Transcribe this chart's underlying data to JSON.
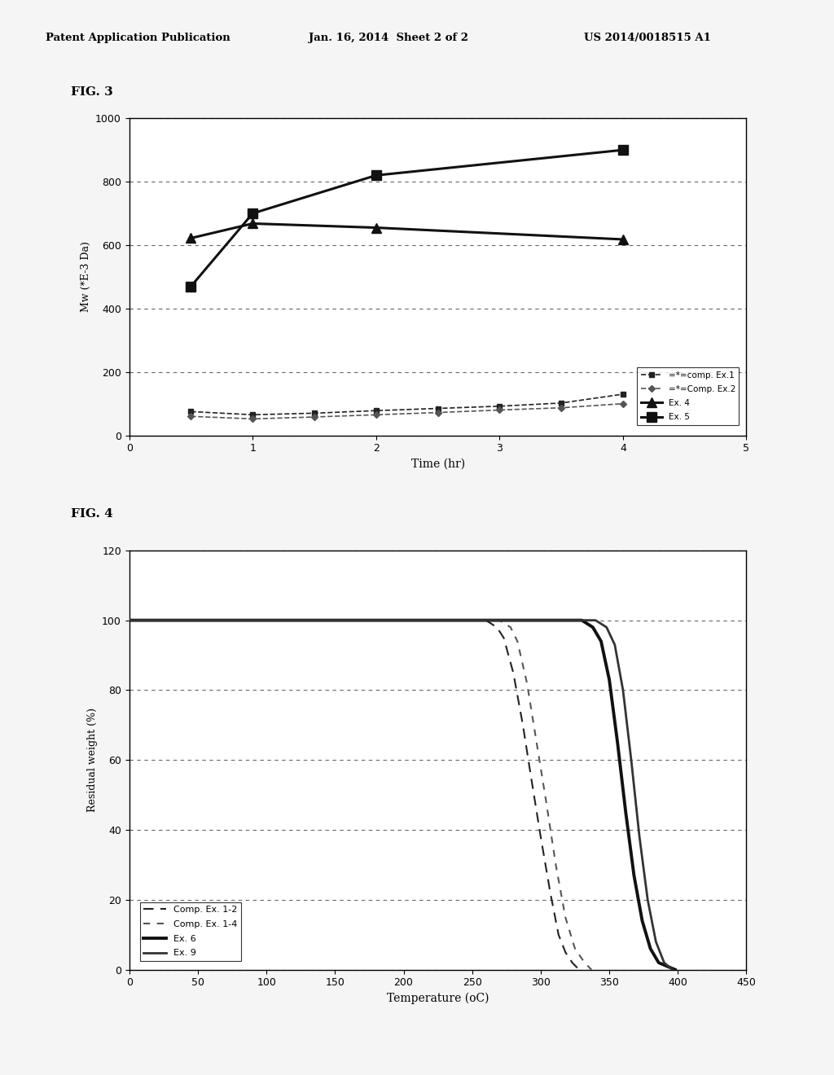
{
  "header_left": "Patent Application Publication",
  "header_mid": "Jan. 16, 2014  Sheet 2 of 2",
  "header_right": "US 2014/0018515 A1",
  "fig3_label": "FIG. 3",
  "fig3": {
    "xlabel": "Time (hr)",
    "ylabel": "Mw (*E-3 Da)",
    "xlim": [
      0,
      5
    ],
    "ylim": [
      0,
      1000
    ],
    "yticks": [
      0,
      200,
      400,
      600,
      800,
      1000
    ],
    "xticks": [
      0,
      1,
      2,
      3,
      4,
      5
    ],
    "series": [
      {
        "label": "=*=comp. Ex.1",
        "x": [
          0.5,
          1.0,
          1.5,
          2.0,
          2.5,
          3.0,
          3.5,
          4.0
        ],
        "y": [
          75,
          65,
          70,
          78,
          85,
          92,
          102,
          130
        ],
        "linestyle": "dashed",
        "marker": "s",
        "color": "#222222",
        "linewidth": 1.2,
        "markersize": 5
      },
      {
        "label": "=*=Comp. Ex.2",
        "x": [
          0.5,
          1.0,
          1.5,
          2.0,
          2.5,
          3.0,
          3.5,
          4.0
        ],
        "y": [
          60,
          52,
          58,
          65,
          72,
          80,
          87,
          100
        ],
        "linestyle": "dashed",
        "marker": "D",
        "color": "#555555",
        "linewidth": 1.2,
        "markersize": 4
      },
      {
        "label": "Ex. 4",
        "x": [
          0.5,
          1.0,
          2.0,
          4.0
        ],
        "y": [
          622,
          668,
          655,
          618
        ],
        "linestyle": "solid",
        "marker": "^",
        "color": "#111111",
        "linewidth": 2.2,
        "markersize": 8
      },
      {
        "label": "Ex. 5",
        "x": [
          0.5,
          1.0,
          2.0,
          4.0
        ],
        "y": [
          470,
          700,
          820,
          900
        ],
        "linestyle": "solid",
        "marker": "s",
        "color": "#111111",
        "linewidth": 2.2,
        "markersize": 8
      }
    ],
    "legend_labels": [
      "=*=comp. Ex.1",
      "=*=Comp. Ex.2",
      "Ex. 4",
      "Ex. 5"
    ]
  },
  "fig4_label": "FIG. 4",
  "fig4": {
    "xlabel": "Temperature (oC)",
    "ylabel": "Residual weight (%)",
    "xlim": [
      0,
      450
    ],
    "ylim": [
      0,
      120
    ],
    "yticks": [
      0,
      20,
      40,
      60,
      80,
      100,
      120
    ],
    "xticks": [
      0,
      50,
      100,
      150,
      200,
      250,
      300,
      350,
      400,
      450
    ],
    "series": [
      {
        "label": "Comp. Ex. 1-2",
        "x": [
          0,
          260,
          268,
          273,
          280,
          287,
          293,
          300,
          307,
          313,
          318,
          323,
          328
        ],
        "y": [
          100,
          100,
          98,
          95,
          85,
          70,
          55,
          38,
          22,
          10,
          5,
          2,
          0
        ],
        "linestyle": "dashed",
        "color": "#222222",
        "linewidth": 1.5,
        "dash_style": [
          6,
          4
        ]
      },
      {
        "label": "Comp. Ex. 1-4",
        "x": [
          0,
          270,
          278,
          283,
          290,
          297,
          304,
          311,
          318,
          325,
          332,
          337
        ],
        "y": [
          100,
          100,
          98,
          94,
          82,
          65,
          48,
          30,
          15,
          6,
          2,
          0
        ],
        "linestyle": "dashed",
        "color": "#555555",
        "linewidth": 1.5,
        "dash_style": [
          4,
          4
        ]
      },
      {
        "label": "Ex. 6",
        "x": [
          0,
          330,
          338,
          344,
          350,
          356,
          362,
          368,
          374,
          380,
          386,
          392,
          398
        ],
        "y": [
          100,
          100,
          98,
          94,
          83,
          65,
          45,
          27,
          14,
          6,
          2,
          1,
          0
        ],
        "linestyle": "solid",
        "color": "#111111",
        "linewidth": 2.8,
        "dash_style": null
      },
      {
        "label": "Ex. 9",
        "x": [
          0,
          340,
          348,
          354,
          360,
          366,
          372,
          378,
          384,
          390,
          396
        ],
        "y": [
          100,
          100,
          98,
          93,
          80,
          60,
          38,
          20,
          8,
          2,
          0
        ],
        "linestyle": "solid",
        "color": "#333333",
        "linewidth": 2.0,
        "dash_style": null
      }
    ],
    "legend_labels": [
      "Comp. Ex. 1-2",
      "Comp. Ex. 1-4",
      "Ex. 6",
      "Ex. 9"
    ]
  },
  "background_color": "#f5f5f5",
  "plot_bg": "#ffffff",
  "text_color": "#000000"
}
